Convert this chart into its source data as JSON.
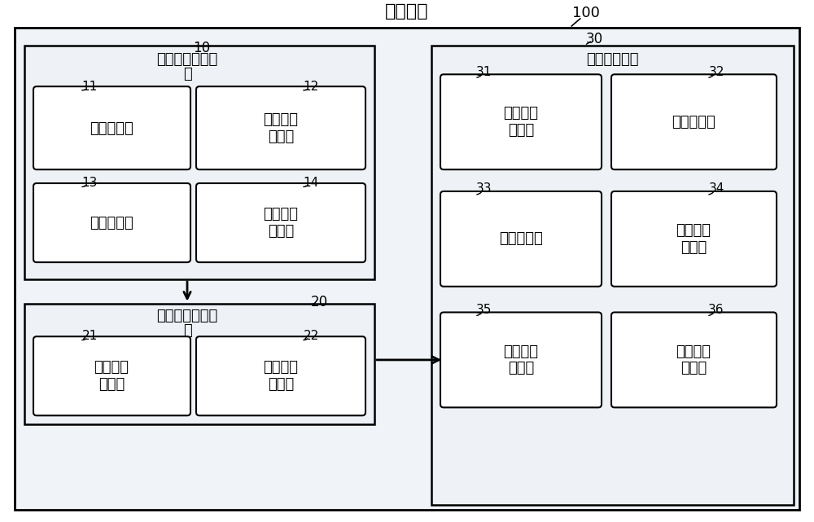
{
  "bg_color": "#ffffff",
  "outer_fill": "#f0f4f8",
  "inner_fill": "#eef2f6",
  "white": "#ffffff",
  "black": "#000000",
  "title": "通信终端",
  "label_100": "100",
  "box10_label1": "重发权重确定模",
  "box10_label2": "块",
  "box10_num": "10",
  "box20_label1": "重发次数计算模",
  "box20_label2": "块",
  "box20_num": "20",
  "box30_label": "重发处理模块",
  "box30_num": "30",
  "sub11_text": "分配子模块",
  "sub11_num": "11",
  "sub12_text": "第一确定\n子模块",
  "sub12_num": "12",
  "sub13_text": "分析子模块",
  "sub13_num": "13",
  "sub14_text": "第二确定\n子模块",
  "sub14_num": "14",
  "sub21_text": "第一计算\n子模块",
  "sub21_num": "21",
  "sub22_text": "第二计算\n子模块",
  "sub22_num": "22",
  "sub31_text": "次数判断\n子模块",
  "sub31_num": "31",
  "sub32_text": "标注子模块",
  "sub32_num": "32",
  "sub33_text": "重发子模块",
  "sub33_num": "33",
  "sub34_text": "第一判断\n子模块",
  "sub34_num": "34",
  "sub35_text": "第二判断\n子模块",
  "sub35_num": "35",
  "sub36_text": "第三判断\n子模块",
  "sub36_num": "36"
}
